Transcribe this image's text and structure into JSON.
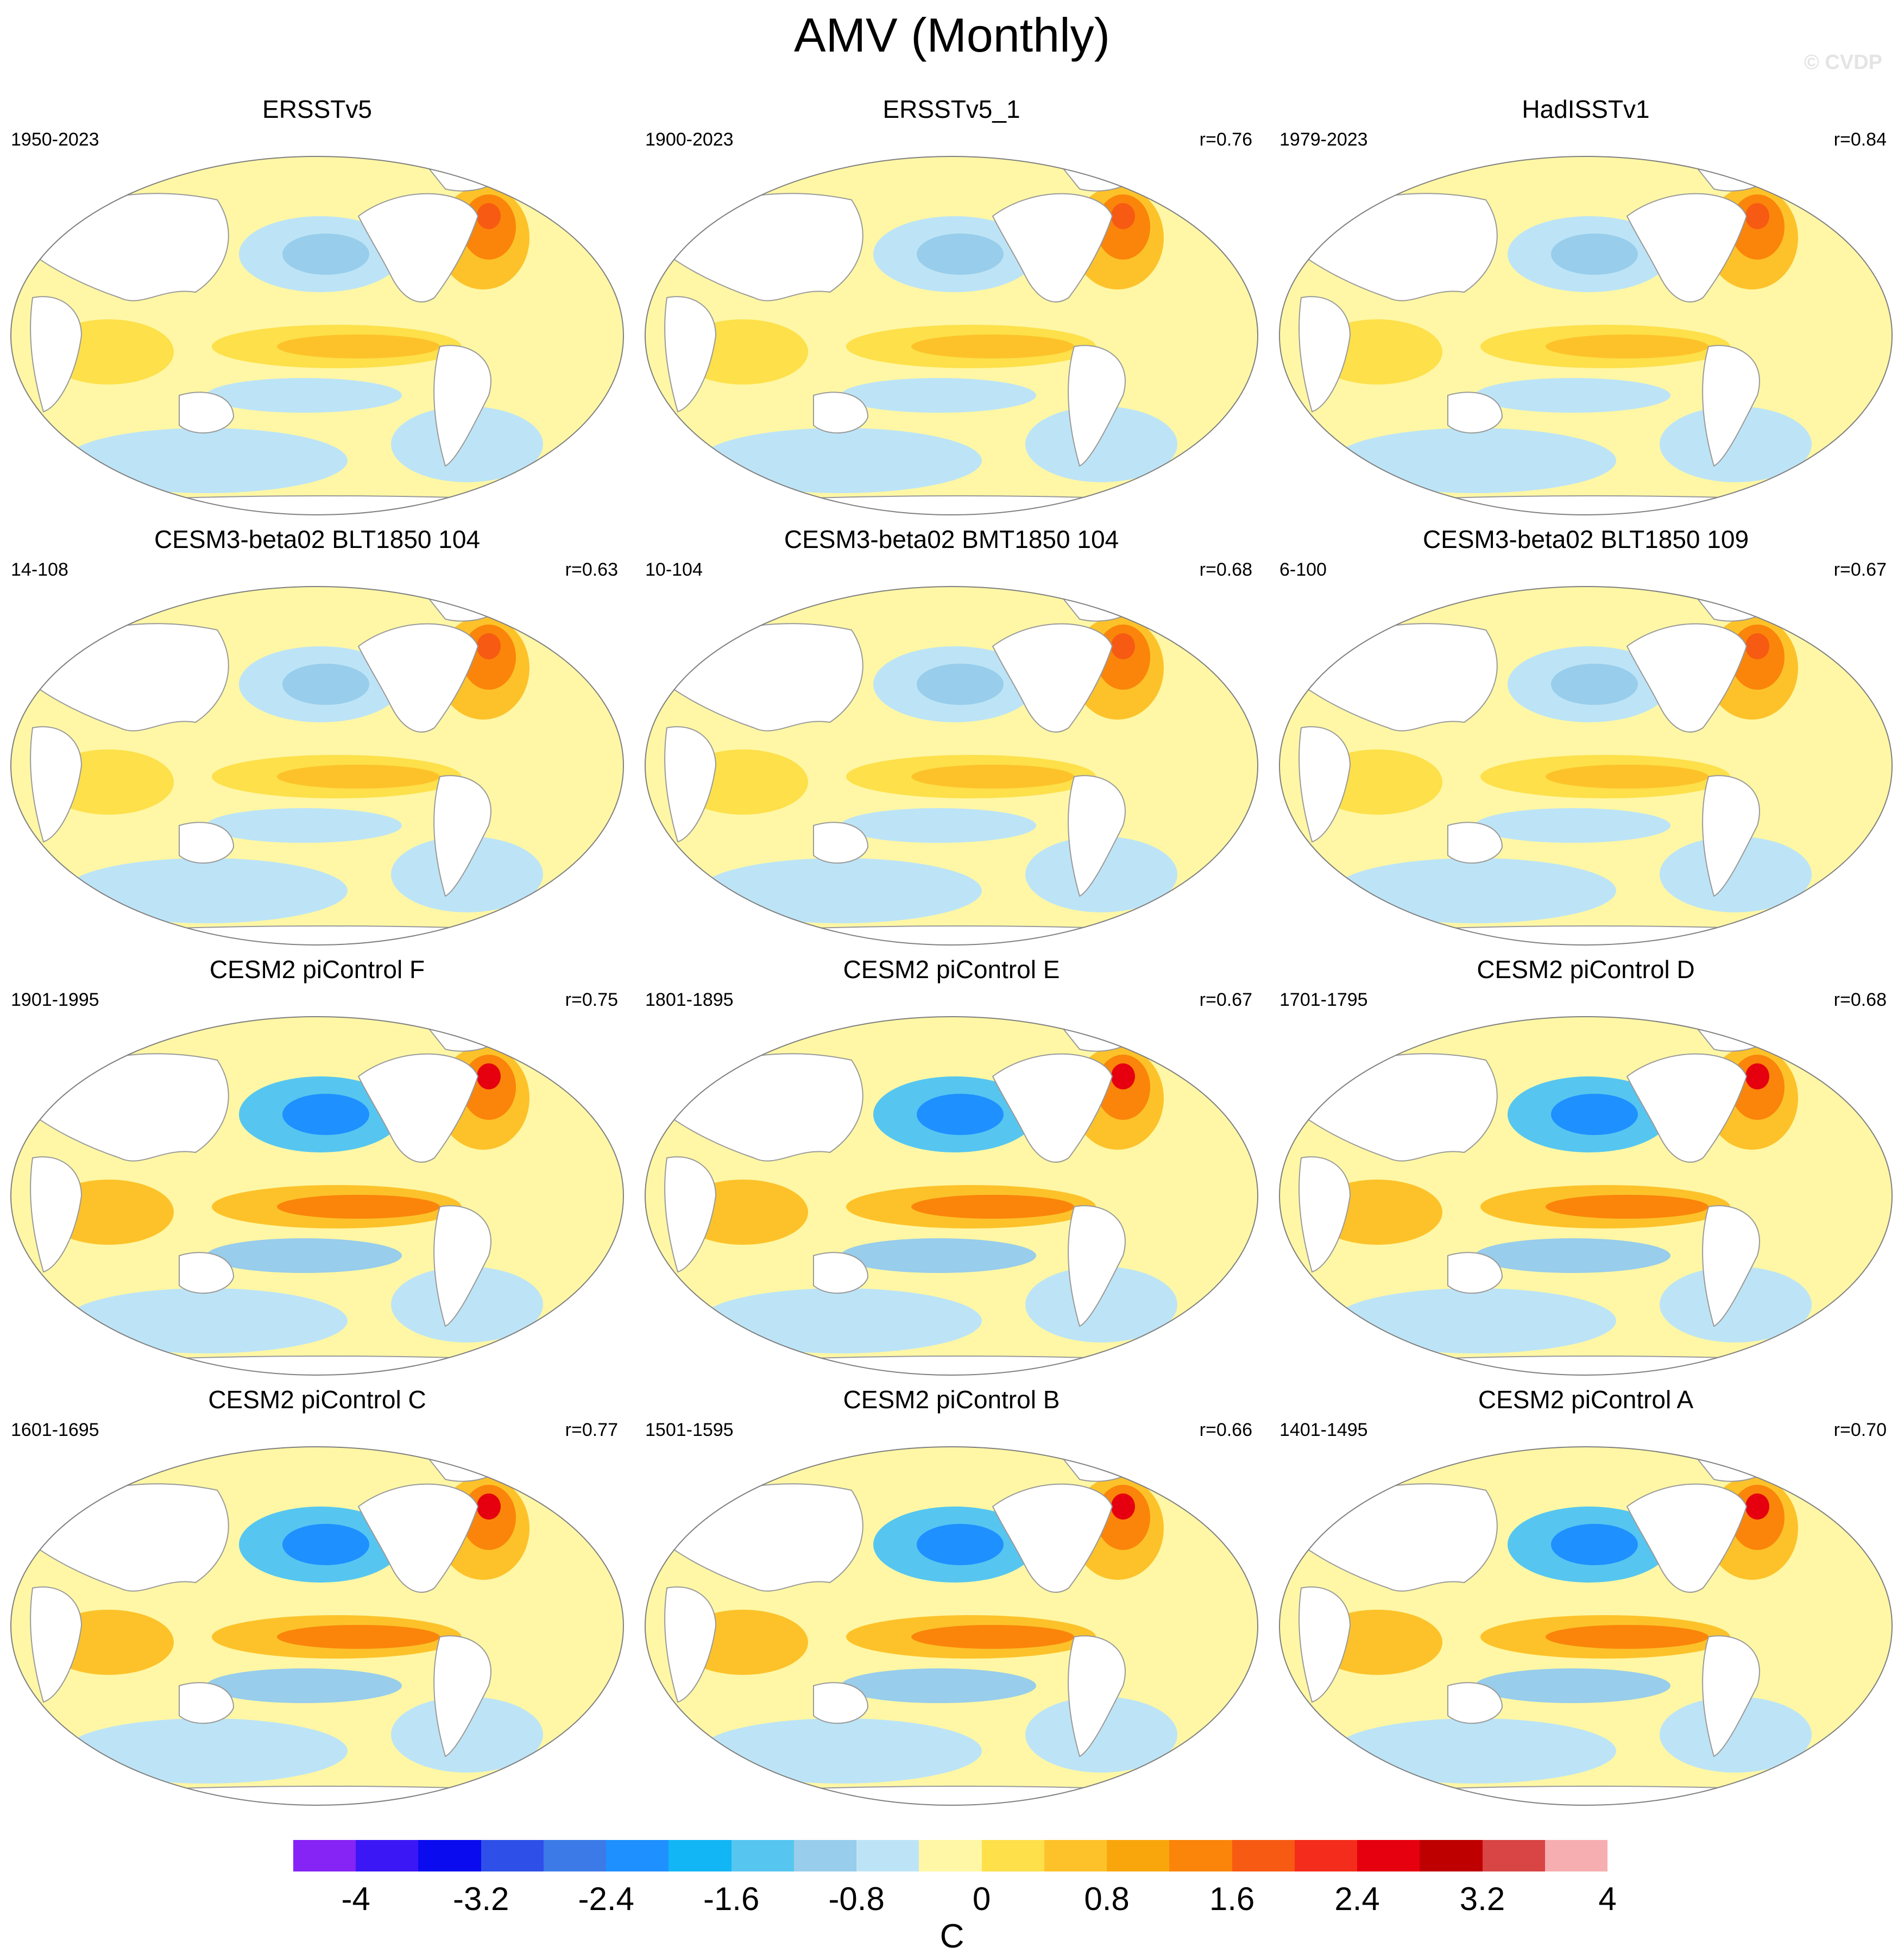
{
  "title": "AMV (Monthly)",
  "watermark": "© CVDP",
  "units": "C",
  "colorbar": {
    "tick_labels": [
      "-4",
      "-3.2",
      "-2.4",
      "-1.6",
      "-0.8",
      "0",
      "0.8",
      "1.6",
      "2.4",
      "3.2",
      "4"
    ],
    "colors": [
      "#8624f5",
      "#3c17f5",
      "#0b0bf0",
      "#2e50e8",
      "#3c7ae8",
      "#1e90ff",
      "#13b6f5",
      "#56c6f0",
      "#98cdeb",
      "#bde4f6",
      "#fff7a5",
      "#fde04a",
      "#fdc22a",
      "#f9a60d",
      "#fa850a",
      "#f75a12",
      "#f42c1c",
      "#e6000f",
      "#bf0000",
      "#d94444",
      "#f6aeb0"
    ]
  },
  "panels": [
    {
      "title": "ERSSTv5",
      "period": "1950-2023",
      "r": ""
    },
    {
      "title": "ERSSTv5_1",
      "period": "1900-2023",
      "r": "r=0.76"
    },
    {
      "title": "HadISSTv1",
      "period": "1979-2023",
      "r": "r=0.84"
    },
    {
      "title": "CESM3-beta02 BLT1850 104",
      "period": "14-108",
      "r": "r=0.63"
    },
    {
      "title": "CESM3-beta02 BMT1850 104",
      "period": "10-104",
      "r": "r=0.68"
    },
    {
      "title": "CESM3-beta02 BLT1850 109",
      "period": "6-100",
      "r": "r=0.67"
    },
    {
      "title": "CESM2 piControl F",
      "period": "1901-1995",
      "r": "r=0.75"
    },
    {
      "title": "CESM2 piControl E",
      "period": "1801-1895",
      "r": "r=0.67"
    },
    {
      "title": "CESM2 piControl D",
      "period": "1701-1795",
      "r": "r=0.68"
    },
    {
      "title": "CESM2 piControl C",
      "period": "1601-1695",
      "r": "r=0.77"
    },
    {
      "title": "CESM2 piControl B",
      "period": "1501-1595",
      "r": "r=0.66"
    },
    {
      "title": "CESM2 piControl A",
      "period": "1401-1495",
      "r": "r=0.70"
    }
  ]
}
